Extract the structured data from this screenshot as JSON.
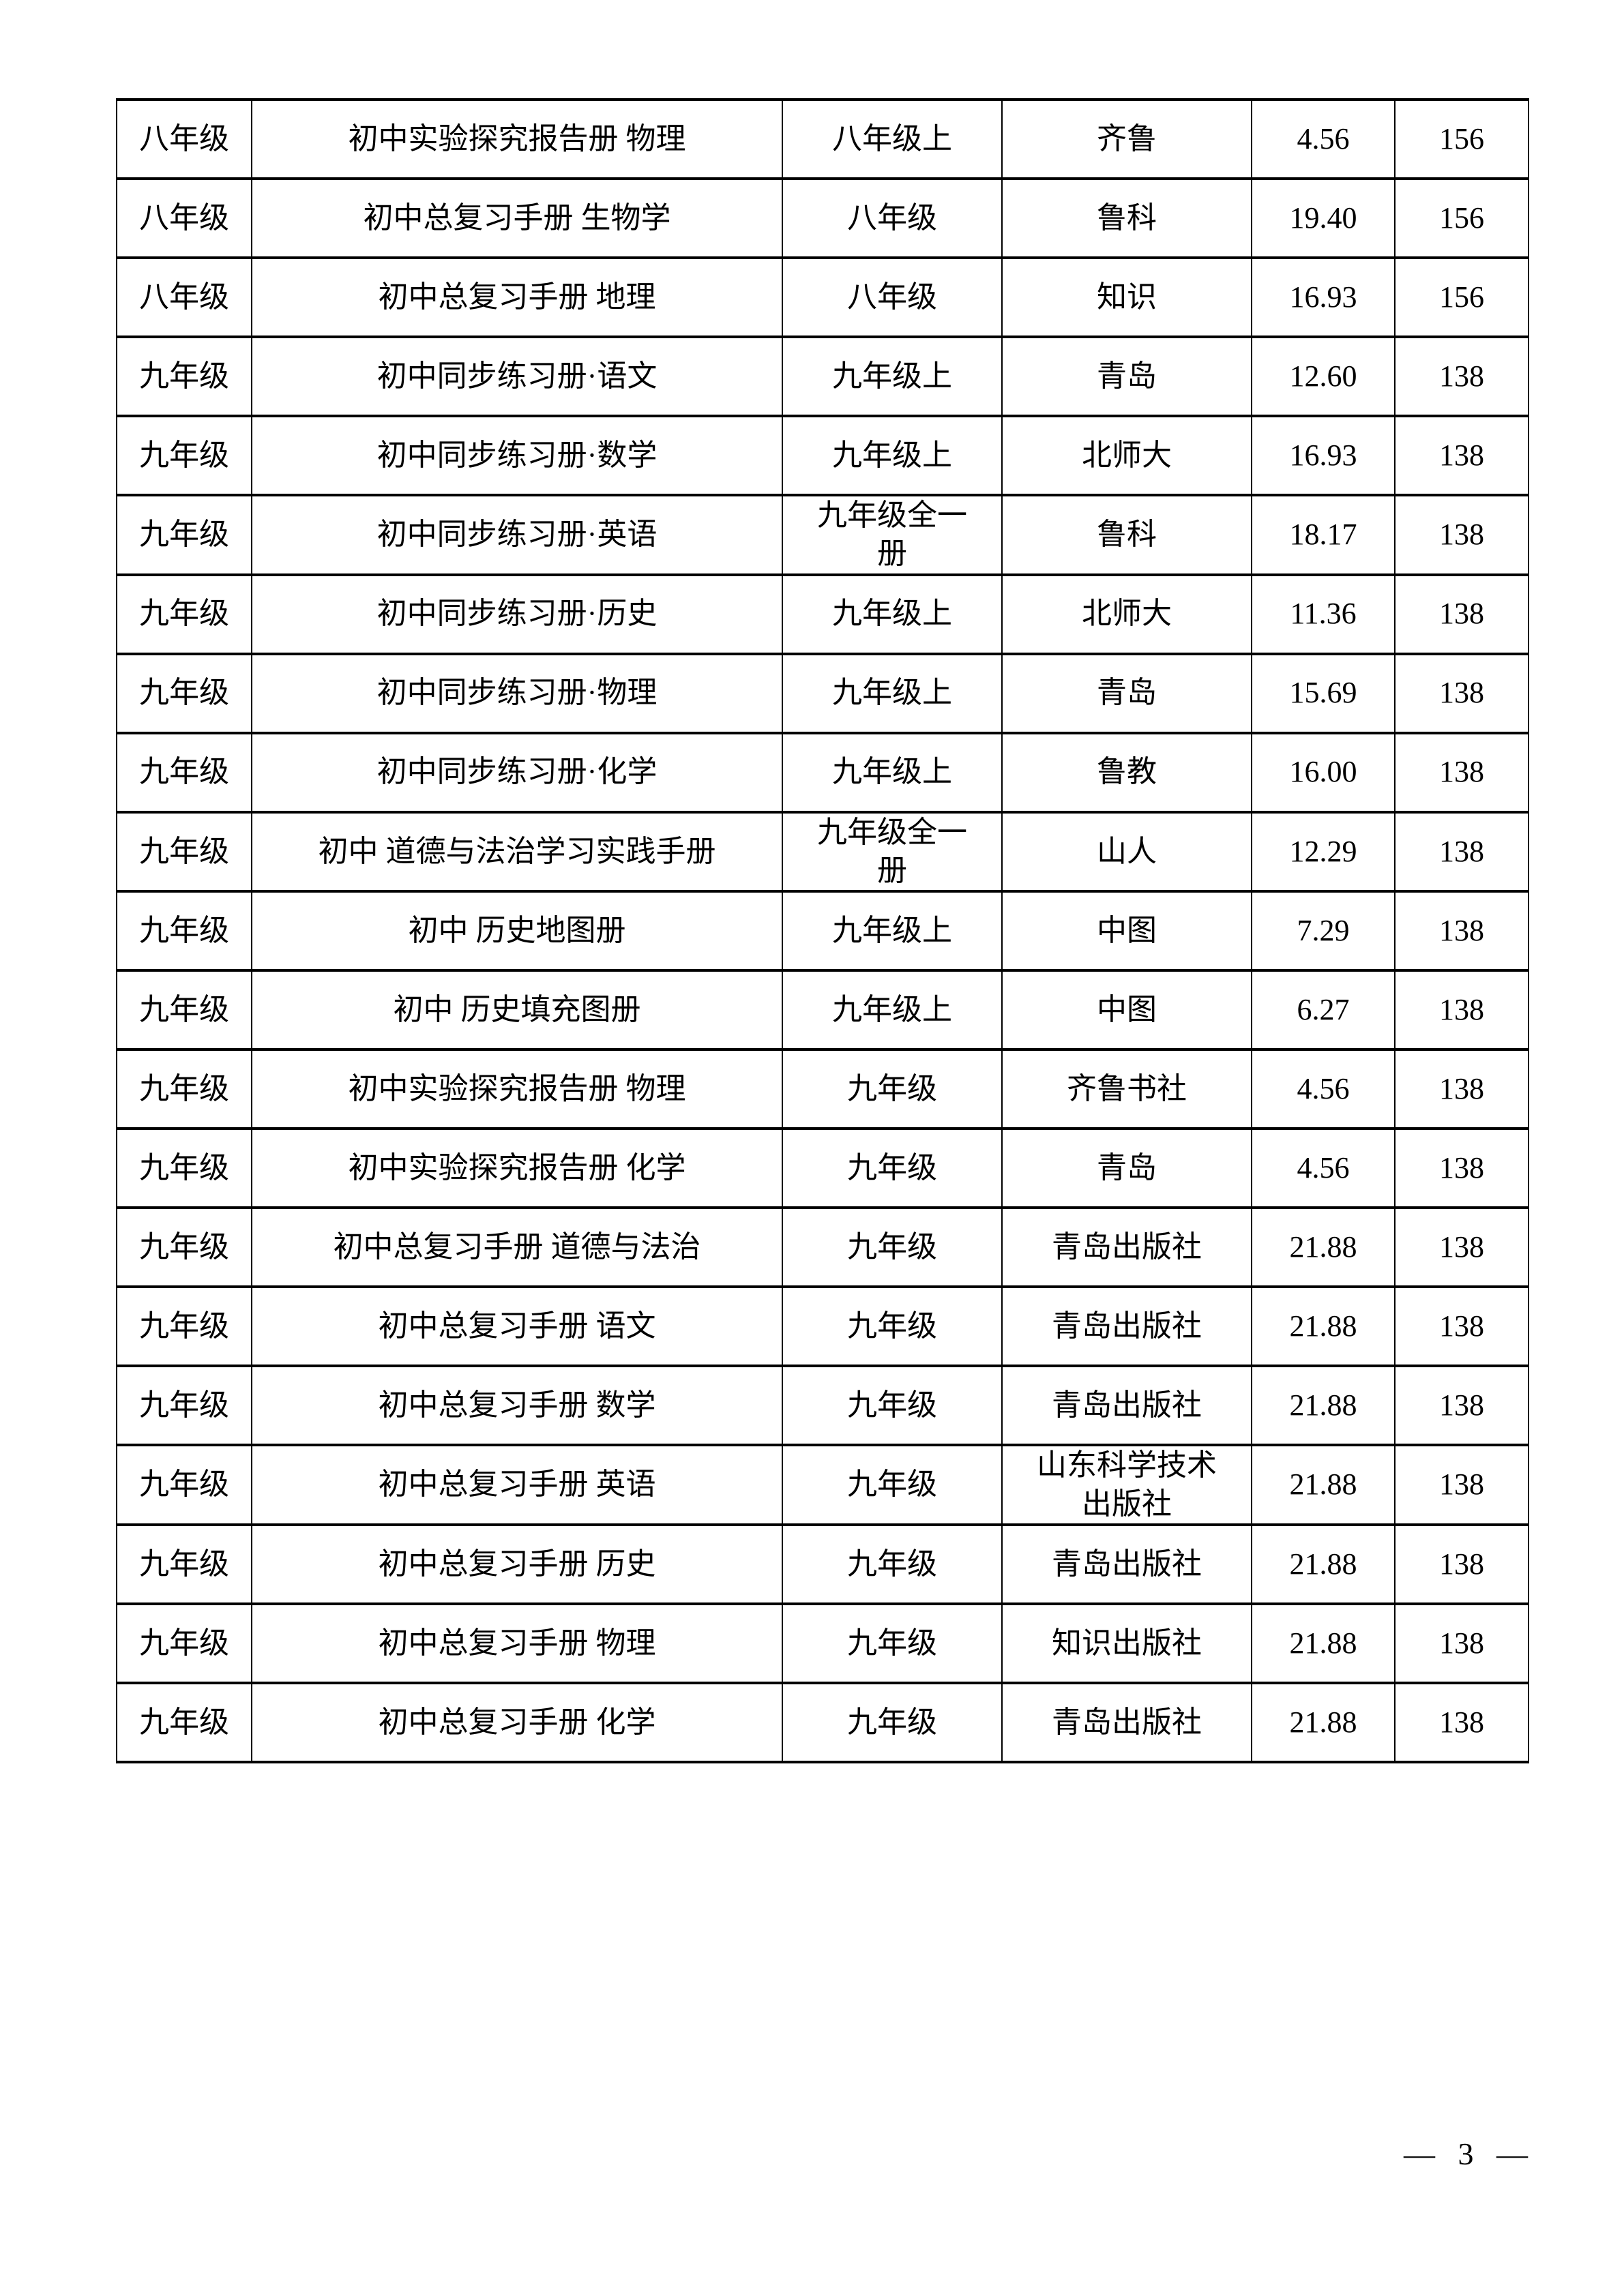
{
  "page": {
    "number_label": "— 3 —"
  },
  "table": {
    "column_keys": [
      "grade",
      "title",
      "volume",
      "publisher",
      "price",
      "count"
    ],
    "rows": [
      {
        "grade": "八年级",
        "title": "初中实验探究报告册 物理",
        "volume": "八年级上",
        "publisher": "齐鲁",
        "price": "4.56",
        "count": "156"
      },
      {
        "grade": "八年级",
        "title": "初中总复习手册 生物学",
        "volume": "八年级",
        "publisher": "鲁科",
        "price": "19.40",
        "count": "156"
      },
      {
        "grade": "八年级",
        "title": "初中总复习手册 地理",
        "volume": "八年级",
        "publisher": "知识",
        "price": "16.93",
        "count": "156"
      },
      {
        "grade": "九年级",
        "title": "初中同步练习册·语文",
        "volume": "九年级上",
        "publisher": "青岛",
        "price": "12.60",
        "count": "138"
      },
      {
        "grade": "九年级",
        "title": "初中同步练习册·数学",
        "volume": "九年级上",
        "publisher": "北师大",
        "price": "16.93",
        "count": "138"
      },
      {
        "grade": "九年级",
        "title": "初中同步练习册·英语",
        "volume": "九年级全一册",
        "publisher": "鲁科",
        "price": "18.17",
        "count": "138"
      },
      {
        "grade": "九年级",
        "title": "初中同步练习册·历史",
        "volume": "九年级上",
        "publisher": "北师大",
        "price": "11.36",
        "count": "138"
      },
      {
        "grade": "九年级",
        "title": "初中同步练习册·物理",
        "volume": "九年级上",
        "publisher": "青岛",
        "price": "15.69",
        "count": "138"
      },
      {
        "grade": "九年级",
        "title": "初中同步练习册·化学",
        "volume": "九年级上",
        "publisher": "鲁教",
        "price": "16.00",
        "count": "138"
      },
      {
        "grade": "九年级",
        "title": "初中 道德与法治学习实践手册",
        "volume": "九年级全一册",
        "publisher": "山人",
        "price": "12.29",
        "count": "138"
      },
      {
        "grade": "九年级",
        "title": "初中 历史地图册",
        "volume": "九年级上",
        "publisher": "中图",
        "price": "7.29",
        "count": "138"
      },
      {
        "grade": "九年级",
        "title": "初中 历史填充图册",
        "volume": "九年级上",
        "publisher": "中图",
        "price": "6.27",
        "count": "138"
      },
      {
        "grade": "九年级",
        "title": "初中实验探究报告册 物理",
        "volume": "九年级",
        "publisher": "齐鲁书社",
        "price": "4.56",
        "count": "138"
      },
      {
        "grade": "九年级",
        "title": "初中实验探究报告册 化学",
        "volume": "九年级",
        "publisher": "青岛",
        "price": "4.56",
        "count": "138"
      },
      {
        "grade": "九年级",
        "title": "初中总复习手册 道德与法治",
        "volume": "九年级",
        "publisher": "青岛出版社",
        "price": "21.88",
        "count": "138"
      },
      {
        "grade": "九年级",
        "title": "初中总复习手册 语文",
        "volume": "九年级",
        "publisher": "青岛出版社",
        "price": "21.88",
        "count": "138"
      },
      {
        "grade": "九年级",
        "title": "初中总复习手册 数学",
        "volume": "九年级",
        "publisher": "青岛出版社",
        "price": "21.88",
        "count": "138"
      },
      {
        "grade": "九年级",
        "title": "初中总复习手册 英语",
        "volume": "九年级",
        "publisher": "山东科学技术出版社",
        "price": "21.88",
        "count": "138"
      },
      {
        "grade": "九年级",
        "title": "初中总复习手册 历史",
        "volume": "九年级",
        "publisher": "青岛出版社",
        "price": "21.88",
        "count": "138"
      },
      {
        "grade": "九年级",
        "title": "初中总复习手册 物理",
        "volume": "九年级",
        "publisher": "知识出版社",
        "price": "21.88",
        "count": "138"
      },
      {
        "grade": "九年级",
        "title": "初中总复习手册 化学",
        "volume": "九年级",
        "publisher": "青岛出版社",
        "price": "21.88",
        "count": "138"
      }
    ]
  }
}
